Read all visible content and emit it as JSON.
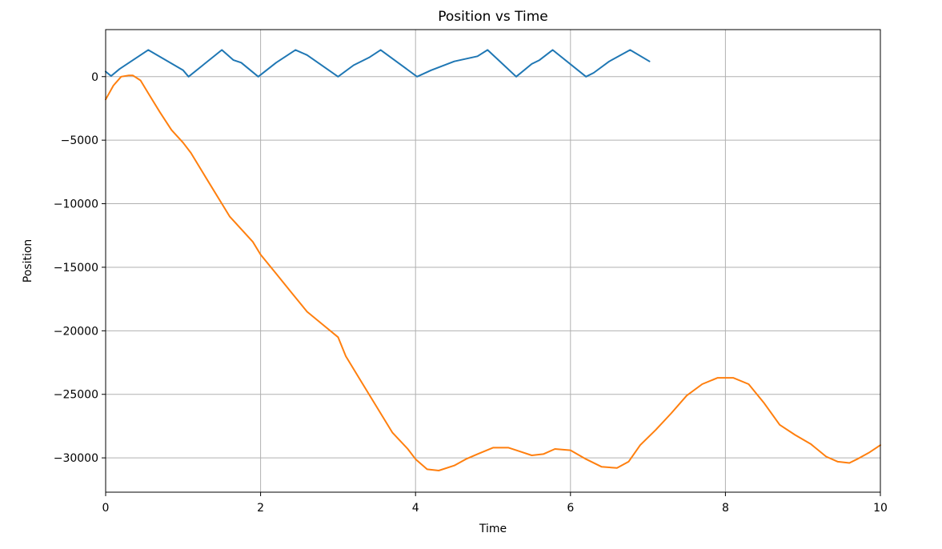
{
  "chart_data": {
    "type": "line",
    "title": "Position vs Time",
    "xlabel": "Time",
    "ylabel": "Position",
    "xlim": [
      0,
      10
    ],
    "ylim": [
      -32700,
      3700
    ],
    "xticks": [
      0,
      2,
      4,
      6,
      8,
      10
    ],
    "xtick_labels": [
      "0",
      "2",
      "4",
      "6",
      "8",
      "10"
    ],
    "yticks": [
      0,
      -5000,
      -10000,
      -15000,
      -20000,
      -25000,
      -30000
    ],
    "ytick_labels": [
      "0",
      "−5000",
      "−10000",
      "−15000",
      "−20000",
      "−25000",
      "−30000"
    ],
    "grid": true,
    "colors": [
      "#1f77b4",
      "#ff7f0e"
    ],
    "series": [
      {
        "x": [
          0,
          0.07,
          0.18,
          0.55,
          1.0,
          1.07,
          1.5,
          1.65,
          1.75,
          1.97,
          2.2,
          2.45,
          2.6,
          3.0,
          3.2,
          3.4,
          3.55,
          4.02,
          4.2,
          4.5,
          4.8,
          4.93,
          5.3,
          5.5,
          5.6,
          5.77,
          6.2,
          6.3,
          6.5,
          6.77,
          7.02
        ],
        "y": [
          400,
          50,
          600,
          2100,
          500,
          0,
          2100,
          1300,
          1100,
          0,
          1100,
          2100,
          1700,
          0,
          900,
          1500,
          2100,
          0,
          500,
          1200,
          1600,
          2100,
          0,
          1000,
          1300,
          2100,
          0,
          300,
          1200,
          2100,
          1200
        ]
      },
      {
        "x": [
          0,
          0.1,
          0.2,
          0.3,
          0.35,
          0.45,
          0.55,
          0.7,
          0.85,
          1.0,
          1.1,
          1.3,
          1.5,
          1.6,
          1.75,
          1.9,
          2.0,
          2.2,
          2.4,
          2.6,
          2.8,
          3.0,
          3.1,
          3.3,
          3.5,
          3.7,
          3.9,
          4.0,
          4.15,
          4.3,
          4.5,
          4.65,
          4.8,
          5.0,
          5.2,
          5.35,
          5.5,
          5.65,
          5.8,
          6.0,
          6.2,
          6.4,
          6.6,
          6.75,
          6.9,
          7.1,
          7.3,
          7.5,
          7.7,
          7.9,
          8.1,
          8.3,
          8.5,
          8.7,
          8.9,
          9.1,
          9.3,
          9.45,
          9.6,
          9.7,
          9.85,
          10.0
        ],
        "y": [
          -1800,
          -700,
          0,
          100,
          100,
          -300,
          -1300,
          -2800,
          -4200,
          -5200,
          -6000,
          -8000,
          -10000,
          -11000,
          -12000,
          -13000,
          -14000,
          -15500,
          -17000,
          -18500,
          -19500,
          -20500,
          -22000,
          -24000,
          -26000,
          -28000,
          -29300,
          -30100,
          -30900,
          -31000,
          -30600,
          -30100,
          -29700,
          -29200,
          -29200,
          -29500,
          -29800,
          -29700,
          -29300,
          -29400,
          -30100,
          -30700,
          -30800,
          -30300,
          -29000,
          -27800,
          -26500,
          -25100,
          -24200,
          -23700,
          -23700,
          -24200,
          -25700,
          -27400,
          -28200,
          -28900,
          -29900,
          -30300,
          -30400,
          -30100,
          -29600,
          -29000
        ]
      }
    ]
  }
}
